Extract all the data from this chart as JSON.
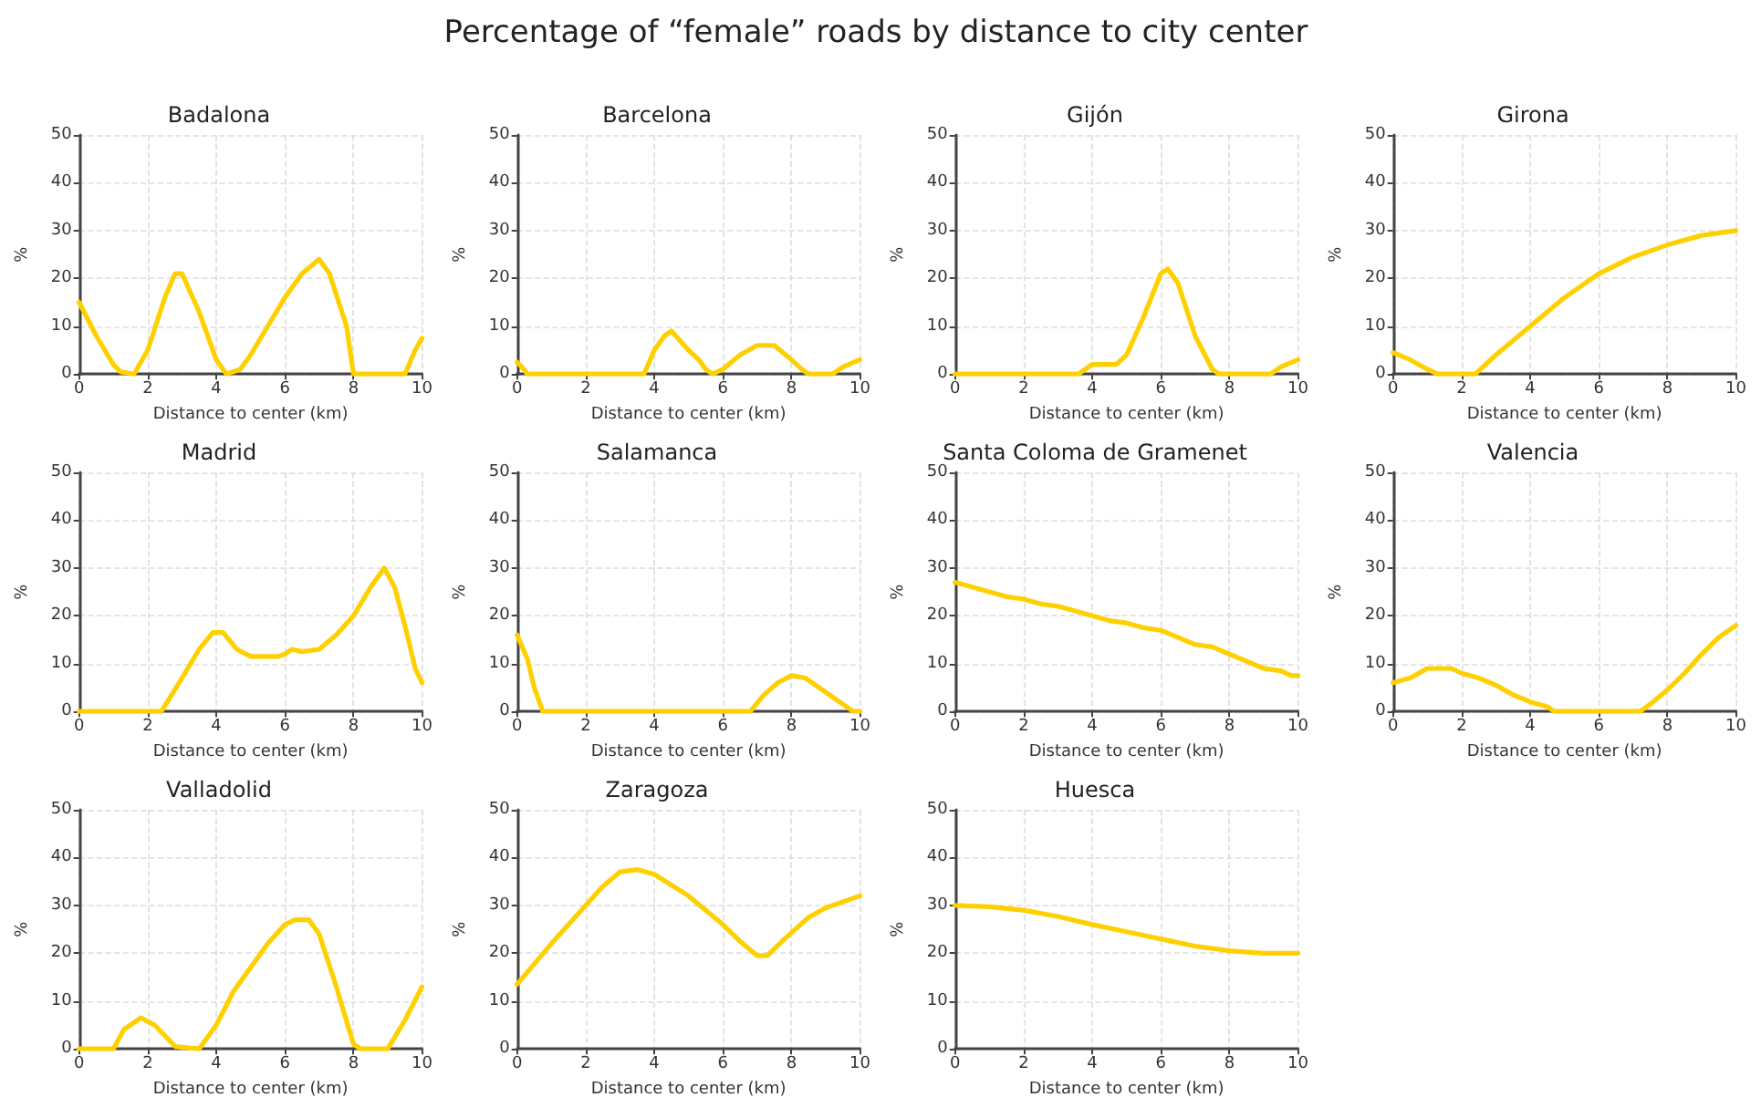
{
  "chart_data": [
    {
      "type": "line",
      "title": "Badalona",
      "annotations": [
        "Percentage of “female” roads by distance to city center"
      ],
      "xlabel": "Distance to center (km)",
      "ylabel": "%",
      "xlim": [
        0,
        10
      ],
      "ylim": [
        0,
        50
      ],
      "xticks": [
        0,
        2,
        4,
        6,
        8,
        10
      ],
      "yticks": [
        0,
        10,
        20,
        30,
        40,
        50
      ],
      "grid": true,
      "marker": "none",
      "line_style": "solid",
      "x": [
        0,
        0.5,
        1,
        1.2,
        1.6,
        2,
        2.5,
        2.8,
        3,
        3.5,
        4,
        4.3,
        4.7,
        5,
        5.5,
        6,
        6.5,
        7,
        7.3,
        7.8,
        8,
        9.5,
        9.8,
        10
      ],
      "series": [
        {
          "color": "#ffd000",
          "values": [
            15,
            8,
            2,
            0.5,
            0,
            5,
            16,
            21,
            21,
            13,
            3,
            0,
            1,
            4,
            10,
            16,
            21,
            24,
            21,
            10,
            0,
            0,
            5,
            7.5
          ]
        }
      ]
    },
    {
      "type": "line",
      "title": "Barcelona",
      "xlabel": "Distance to center (km)",
      "ylabel": "%",
      "xlim": [
        0,
        10
      ],
      "ylim": [
        0,
        50
      ],
      "xticks": [
        0,
        2,
        4,
        6,
        8,
        10
      ],
      "yticks": [
        0,
        10,
        20,
        30,
        40,
        50
      ],
      "grid": true,
      "marker": "none",
      "line_style": "solid",
      "x": [
        0,
        0.2,
        0.3,
        3.7,
        4,
        4.3,
        4.5,
        5,
        5.3,
        5.5,
        5.7,
        6,
        6.5,
        7,
        7.5,
        8,
        8.3,
        8.5,
        9.2,
        9.5,
        10
      ],
      "series": [
        {
          "color": "#ffd000",
          "values": [
            2.5,
            1,
            0,
            0,
            5,
            8,
            9,
            5,
            3,
            1,
            0,
            1,
            4,
            6,
            6,
            3,
            1,
            0,
            0,
            1.5,
            3
          ]
        }
      ]
    },
    {
      "type": "line",
      "title": "Gijón",
      "xlabel": "Distance to center (km)",
      "ylabel": "%",
      "xlim": [
        0,
        10
      ],
      "ylim": [
        0,
        50
      ],
      "xticks": [
        0,
        2,
        4,
        6,
        8,
        10
      ],
      "yticks": [
        0,
        10,
        20,
        30,
        40,
        50
      ],
      "grid": true,
      "marker": "none",
      "line_style": "solid",
      "x": [
        0,
        3.6,
        4,
        4.7,
        5,
        5.5,
        6,
        6.2,
        6.5,
        7,
        7.5,
        7.7,
        9.2,
        9.5,
        10
      ],
      "series": [
        {
          "color": "#ffd000",
          "values": [
            0,
            0,
            2,
            2,
            4,
            12,
            21,
            22,
            19,
            8,
            1,
            0,
            0,
            1.5,
            3
          ]
        }
      ]
    },
    {
      "type": "line",
      "title": "Girona",
      "xlabel": "Distance to center (km)",
      "ylabel": "%",
      "xlim": [
        0,
        10
      ],
      "ylim": [
        0,
        50
      ],
      "xticks": [
        0,
        2,
        4,
        6,
        8,
        10
      ],
      "yticks": [
        0,
        10,
        20,
        30,
        40,
        50
      ],
      "grid": true,
      "marker": "none",
      "line_style": "solid",
      "x": [
        0,
        0.5,
        1,
        1.3,
        2.4,
        3,
        4,
        5,
        6,
        7,
        8,
        9,
        10
      ],
      "series": [
        {
          "color": "#ffd000",
          "values": [
            4.5,
            3,
            1,
            0,
            0,
            4,
            10,
            16,
            21,
            24.5,
            27,
            29,
            30
          ]
        }
      ]
    },
    {
      "type": "line",
      "title": "Madrid",
      "xlabel": "Distance to center (km)",
      "ylabel": "%",
      "xlim": [
        0,
        10
      ],
      "ylim": [
        0,
        50
      ],
      "xticks": [
        0,
        2,
        4,
        6,
        8,
        10
      ],
      "yticks": [
        0,
        10,
        20,
        30,
        40,
        50
      ],
      "grid": true,
      "marker": "none",
      "line_style": "solid",
      "x": [
        0,
        2.4,
        3,
        3.5,
        3.9,
        4.2,
        4.6,
        5,
        5.8,
        6,
        6.2,
        6.5,
        7,
        7.5,
        8,
        8.5,
        8.9,
        9.2,
        9.5,
        9.8,
        10
      ],
      "series": [
        {
          "color": "#ffd000",
          "values": [
            0,
            0,
            7,
            13,
            16.5,
            16.5,
            13,
            11.5,
            11.5,
            12,
            13,
            12.5,
            13,
            16,
            20,
            26,
            30,
            26,
            18,
            9,
            6
          ]
        }
      ]
    },
    {
      "type": "line",
      "title": "Salamanca",
      "xlabel": "Distance to center (km)",
      "ylabel": "%",
      "xlim": [
        0,
        10
      ],
      "ylim": [
        0,
        50
      ],
      "xticks": [
        0,
        2,
        4,
        6,
        8,
        10
      ],
      "yticks": [
        0,
        10,
        20,
        30,
        40,
        50
      ],
      "grid": true,
      "marker": "none",
      "line_style": "solid",
      "x": [
        0,
        0.3,
        0.5,
        0.75,
        6.8,
        7.2,
        7.6,
        8,
        8.4,
        8.8,
        9.2,
        9.6,
        9.8,
        10
      ],
      "series": [
        {
          "color": "#ffd000",
          "values": [
            16,
            11,
            5,
            0,
            0,
            3.5,
            6,
            7.5,
            7,
            5,
            3,
            1,
            0,
            0
          ]
        }
      ]
    },
    {
      "type": "line",
      "title": "Santa Coloma de Gramenet",
      "xlabel": "Distance to center (km)",
      "ylabel": "%",
      "xlim": [
        0,
        10
      ],
      "ylim": [
        0,
        50
      ],
      "xticks": [
        0,
        2,
        4,
        6,
        8,
        10
      ],
      "yticks": [
        0,
        10,
        20,
        30,
        40,
        50
      ],
      "grid": true,
      "marker": "none",
      "line_style": "solid",
      "x": [
        0,
        0.5,
        1,
        1.5,
        2,
        2.5,
        3,
        3.5,
        4,
        4.5,
        5,
        5.5,
        6,
        6.5,
        7,
        7.5,
        8,
        8.5,
        9,
        9.5,
        9.8,
        10
      ],
      "series": [
        {
          "color": "#ffd000",
          "values": [
            27,
            26,
            25,
            24,
            23.5,
            22.5,
            22,
            21,
            20,
            19,
            18.5,
            17.5,
            17,
            15.5,
            14,
            13.5,
            12,
            10.5,
            9,
            8.5,
            7.5,
            7.5
          ]
        }
      ]
    },
    {
      "type": "line",
      "title": "Valencia",
      "xlabel": "Distance to center (km)",
      "ylabel": "%",
      "xlim": [
        0,
        10
      ],
      "ylim": [
        0,
        50
      ],
      "xticks": [
        0,
        2,
        4,
        6,
        8,
        10
      ],
      "yticks": [
        0,
        10,
        20,
        30,
        40,
        50
      ],
      "grid": true,
      "marker": "none",
      "line_style": "solid",
      "x": [
        0,
        0.5,
        1,
        1.7,
        2,
        2.5,
        3,
        3.5,
        4,
        4.5,
        4.7,
        7.2,
        7.5,
        8,
        8.5,
        9,
        9.5,
        10
      ],
      "series": [
        {
          "color": "#ffd000",
          "values": [
            6,
            7,
            9,
            9,
            8,
            7,
            5.5,
            3.5,
            2,
            1,
            0,
            0,
            1.5,
            4.5,
            8,
            12,
            15.5,
            18
          ]
        }
      ]
    },
    {
      "type": "line",
      "title": "Valladolid",
      "xlabel": "Distance to center (km)",
      "ylabel": "%",
      "xlim": [
        0,
        10
      ],
      "ylim": [
        0,
        50
      ],
      "xticks": [
        0,
        2,
        4,
        6,
        8,
        10
      ],
      "yticks": [
        0,
        10,
        20,
        30,
        40,
        50
      ],
      "grid": true,
      "marker": "none",
      "line_style": "solid",
      "x": [
        0,
        1,
        1.3,
        1.8,
        2.2,
        2.8,
        3.5,
        4,
        4.5,
        5,
        5.5,
        6,
        6.3,
        6.7,
        7,
        7.5,
        8,
        8.2,
        9,
        9.5,
        10
      ],
      "series": [
        {
          "color": "#ffd000",
          "values": [
            0,
            0,
            4,
            6.5,
            5,
            0.5,
            0,
            5,
            12,
            17,
            22,
            26,
            27,
            27,
            24,
            13,
            1,
            0,
            0,
            6,
            13
          ]
        }
      ]
    },
    {
      "type": "line",
      "title": "Zaragoza",
      "xlabel": "Distance to center (km)",
      "ylabel": "%",
      "xlim": [
        0,
        10
      ],
      "ylim": [
        0,
        50
      ],
      "xticks": [
        0,
        2,
        4,
        6,
        8,
        10
      ],
      "yticks": [
        0,
        10,
        20,
        30,
        40,
        50
      ],
      "grid": true,
      "marker": "none",
      "line_style": "solid",
      "x": [
        0,
        1,
        2,
        2.5,
        3,
        3.5,
        4,
        5,
        6,
        6.5,
        7,
        7.3,
        7.8,
        8.5,
        9,
        10
      ],
      "series": [
        {
          "color": "#ffd000",
          "values": [
            13.5,
            22,
            30,
            34,
            37,
            37.5,
            36.5,
            32,
            26,
            22.5,
            19.5,
            19.5,
            23,
            27.5,
            29.5,
            32
          ]
        }
      ]
    },
    {
      "type": "line",
      "title": "Huesca",
      "xlabel": "Distance to center (km)",
      "ylabel": "%",
      "xlim": [
        0,
        10
      ],
      "ylim": [
        0,
        50
      ],
      "xticks": [
        0,
        2,
        4,
        6,
        8,
        10
      ],
      "yticks": [
        0,
        10,
        20,
        30,
        40,
        50
      ],
      "grid": true,
      "marker": "none",
      "line_style": "solid",
      "x": [
        0,
        1,
        2,
        3,
        4,
        5,
        6,
        7,
        8,
        9,
        10
      ],
      "series": [
        {
          "color": "#ffd000",
          "values": [
            30,
            29.7,
            29,
            27.7,
            26,
            24.5,
            23,
            21.5,
            20.5,
            20,
            20
          ]
        }
      ]
    }
  ]
}
